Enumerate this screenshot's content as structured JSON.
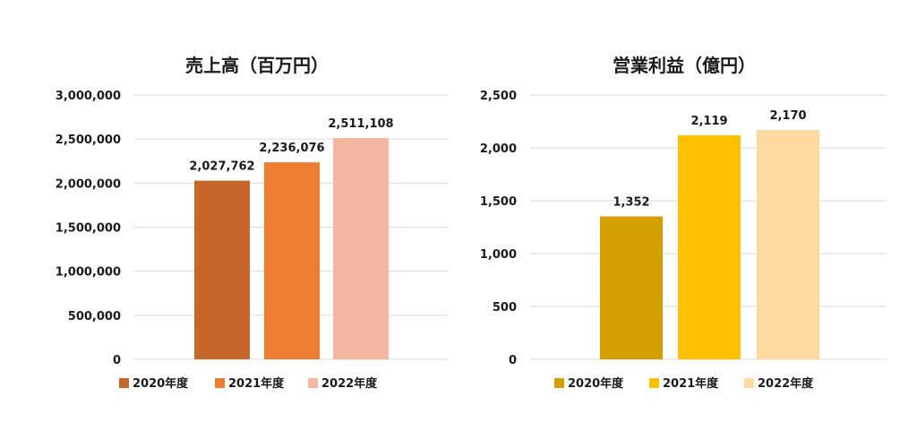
{
  "chart_data": [
    {
      "type": "bar",
      "title": "売上高（百万円）",
      "categories": [
        "2020年度",
        "2021年度",
        "2022年度"
      ],
      "values": [
        2027762,
        2236076,
        2511108
      ],
      "data_labels": [
        "2,027,762",
        "2,236,076",
        "2,511,108"
      ],
      "colors": [
        "#c5672b",
        "#ed7d31",
        "#f4b8a2"
      ],
      "ylim": [
        0,
        3000000
      ],
      "yticks": [
        0,
        500000,
        1000000,
        1500000,
        2000000,
        2500000,
        3000000
      ],
      "ytick_labels": [
        "0",
        "500,000",
        "1,000,000",
        "1,500,000",
        "2,000,000",
        "2,500,000",
        "3,000,000"
      ],
      "grid": true,
      "legend_position": "bottom"
    },
    {
      "type": "bar",
      "title": "営業利益（億円）",
      "categories": [
        "2020年度",
        "2021年度",
        "2022年度"
      ],
      "values": [
        1352,
        2119,
        2170
      ],
      "data_labels": [
        "1,352",
        "2,119",
        "2,170"
      ],
      "colors": [
        "#d4a000",
        "#ffc000",
        "#ffd9a0"
      ],
      "ylim": [
        0,
        2500
      ],
      "yticks": [
        0,
        500,
        1000,
        1500,
        2000,
        2500
      ],
      "ytick_labels": [
        "0",
        "500",
        "1,000",
        "1,500",
        "2,000",
        "2,500"
      ],
      "grid": true,
      "legend_position": "bottom"
    }
  ]
}
